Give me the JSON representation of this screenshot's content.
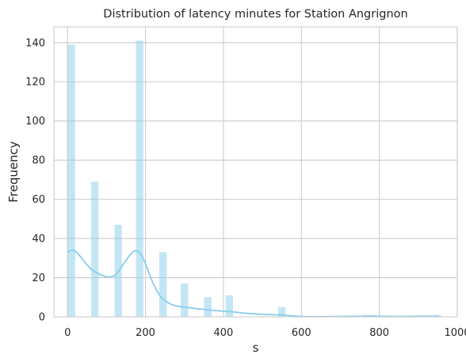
{
  "chart_data": {
    "type": "bar",
    "title": "Distribution of latency minutes for Station Angrignon",
    "xlabel": "s",
    "ylabel": "Frequency",
    "xlim": [
      -35,
      1000
    ],
    "ylim": [
      0,
      148
    ],
    "xticks": [
      0,
      200,
      400,
      600,
      800,
      1000
    ],
    "yticks": [
      0,
      20,
      40,
      60,
      80,
      100,
      120,
      140
    ],
    "grid": true,
    "color": "#87ceeb",
    "bin_width": 19,
    "bars": [
      {
        "x": 10,
        "value": 139
      },
      {
        "x": 70,
        "value": 69
      },
      {
        "x": 130,
        "value": 47
      },
      {
        "x": 185,
        "value": 141
      },
      {
        "x": 245,
        "value": 33
      },
      {
        "x": 300,
        "value": 17
      },
      {
        "x": 360,
        "value": 10
      },
      {
        "x": 415,
        "value": 11
      },
      {
        "x": 550,
        "value": 5
      },
      {
        "x": 765,
        "value": 1
      },
      {
        "x": 785,
        "value": 1
      },
      {
        "x": 950,
        "value": 1
      }
    ],
    "kde": {
      "x": [
        0,
        10,
        20,
        30,
        40,
        60,
        80,
        100,
        120,
        130,
        140,
        160,
        170,
        180,
        190,
        200,
        220,
        240,
        260,
        280,
        300,
        340,
        380,
        420,
        460,
        500,
        540,
        560,
        580,
        600,
        640,
        700,
        760,
        800,
        850,
        900,
        950
      ],
      "y": [
        33,
        34,
        33.5,
        31.5,
        29,
        24.5,
        22,
        20.5,
        21,
        23,
        26,
        31.5,
        33.5,
        33.5,
        31.5,
        27,
        17,
        10,
        7,
        5.5,
        5,
        4,
        3.2,
        2.6,
        1.8,
        1.3,
        1.0,
        0.8,
        0.5,
        0.2,
        0.1,
        0.2,
        0.3,
        0.3,
        0.2,
        0.3,
        0.3
      ]
    }
  }
}
